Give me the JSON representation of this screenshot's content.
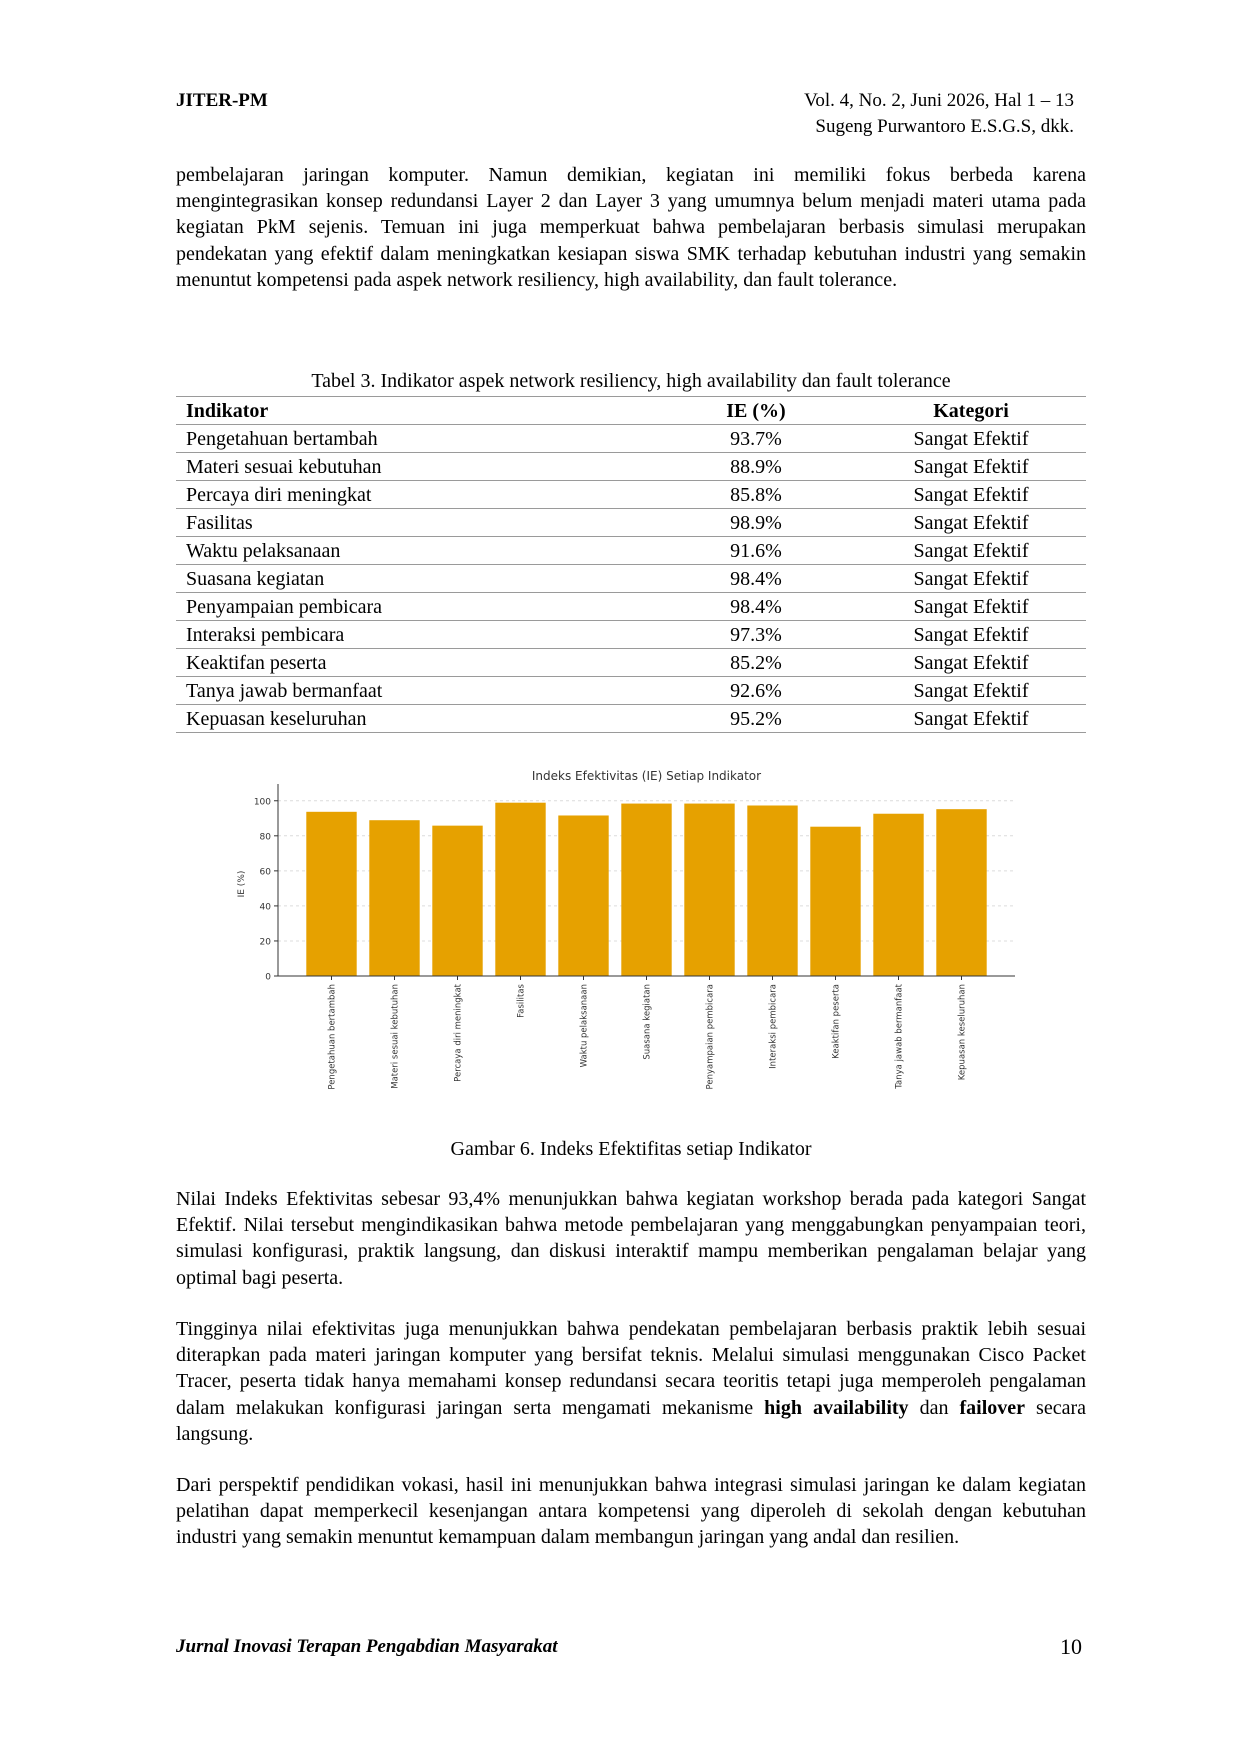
{
  "header": {
    "journal_abbr": "JITER-PM",
    "volume_info": "Vol. 4, No. 2, Juni 2026, Hal 1 – 13",
    "authors": "Sugeng Purwantoro E.S.G.S, dkk."
  },
  "paragraphs": {
    "p1": "pembelajaran jaringan komputer. Namun demikian, kegiatan ini memiliki fokus berbeda karena mengintegrasikan konsep redundansi Layer 2 dan Layer 3 yang umumnya belum menjadi materi utama pada kegiatan PkM sejenis. Temuan ini juga memperkuat bahwa pembelajaran berbasis simulasi merupakan pendekatan yang efektif dalam meningkatkan kesiapan siswa SMK terhadap kebutuhan industri yang semakin menuntut kompetensi pada aspek network resiliency, high availability, dan fault tolerance.",
    "p2": "Nilai Indeks Efektivitas sebesar 93,4% menunjukkan bahwa kegiatan workshop berada pada kategori Sangat Efektif. Nilai tersebut mengindikasikan bahwa metode pembelajaran yang menggabungkan penyampaian teori, simulasi konfigurasi, praktik langsung, dan diskusi interaktif mampu memberikan pengalaman belajar yang optimal bagi peserta.",
    "p3_text": "Tingginya nilai efektivitas juga menunjukkan bahwa pendekatan pembelajaran berbasis praktik lebih sesuai diterapkan pada materi jaringan komputer yang bersifat teknis. Melalui simulasi menggunakan Cisco Packet Tracer, peserta tidak hanya memahami konsep redundansi secara teoritis tetapi juga memperoleh pengalaman dalam melakukan konfigurasi jaringan serta mengamati mekanisme ",
    "p3_bold1": "high availability",
    "p3_mid": " dan ",
    "p3_bold2": "failover",
    "p3_end": " secara langsung.",
    "p4": "Dari perspektif pendidikan vokasi, hasil ini menunjukkan bahwa integrasi simulasi jaringan ke dalam kegiatan pelatihan dapat memperkecil kesenjangan antara kompetensi yang diperoleh di sekolah dengan kebutuhan industri yang semakin menuntut kemampuan dalam membangun jaringan yang andal dan resilien."
  },
  "table": {
    "caption": "Tabel 3. Indikator aspek network resiliency, high availability dan fault tolerance",
    "headers": [
      "Indikator",
      "IE (%)",
      "Kategori"
    ],
    "rows": [
      [
        "Pengetahuan bertambah",
        "93.7%",
        "Sangat Efektif"
      ],
      [
        "Materi sesuai kebutuhan",
        "88.9%",
        "Sangat Efektif"
      ],
      [
        "Percaya diri meningkat",
        "85.8%",
        "Sangat Efektif"
      ],
      [
        "Fasilitas",
        "98.9%",
        "Sangat Efektif"
      ],
      [
        "Waktu pelaksanaan",
        "91.6%",
        "Sangat Efektif"
      ],
      [
        "Suasana kegiatan",
        "98.4%",
        "Sangat Efektif"
      ],
      [
        "Penyampaian pembicara",
        "98.4%",
        "Sangat Efektif"
      ],
      [
        "Interaksi pembicara",
        "97.3%",
        "Sangat Efektif"
      ],
      [
        "Keaktifan peserta",
        "85.2%",
        "Sangat Efektif"
      ],
      [
        "Tanya jawab bermanfaat",
        "92.6%",
        "Sangat Efektif"
      ],
      [
        "Kepuasan keseluruhan",
        "95.2%",
        "Sangat Efektif"
      ]
    ]
  },
  "chart_data": {
    "type": "bar",
    "title": "Indeks Efektivitas (IE) Setiap Indikator",
    "xlabel": "",
    "ylabel": "IE (%)",
    "categories": [
      "Pengetahuan bertambah",
      "Materi sesuai kebutuhan",
      "Percaya diri meningkat",
      "Fasilitas",
      "Waktu pelaksanaan",
      "Suasana kegiatan",
      "Penyampaian pembicara",
      "Interaksi pembicara",
      "Keaktifan peserta",
      "Tanya jawab bermanfaat",
      "Kepuasan keseluruhan"
    ],
    "values": [
      93.7,
      88.9,
      85.8,
      98.9,
      91.6,
      98.4,
      98.4,
      97.3,
      85.2,
      92.6,
      95.2
    ],
    "ylim": [
      0,
      105
    ],
    "yticks": [
      0,
      20,
      40,
      60,
      80,
      100
    ],
    "grid": true,
    "bar_color": "#e6a100"
  },
  "figure_caption": "Gambar 6. Indeks Efektifitas setiap Indikator",
  "footer": {
    "journal_name": "Jurnal Inovasi Terapan Pengabdian Masyarakat",
    "page_number": "10"
  }
}
